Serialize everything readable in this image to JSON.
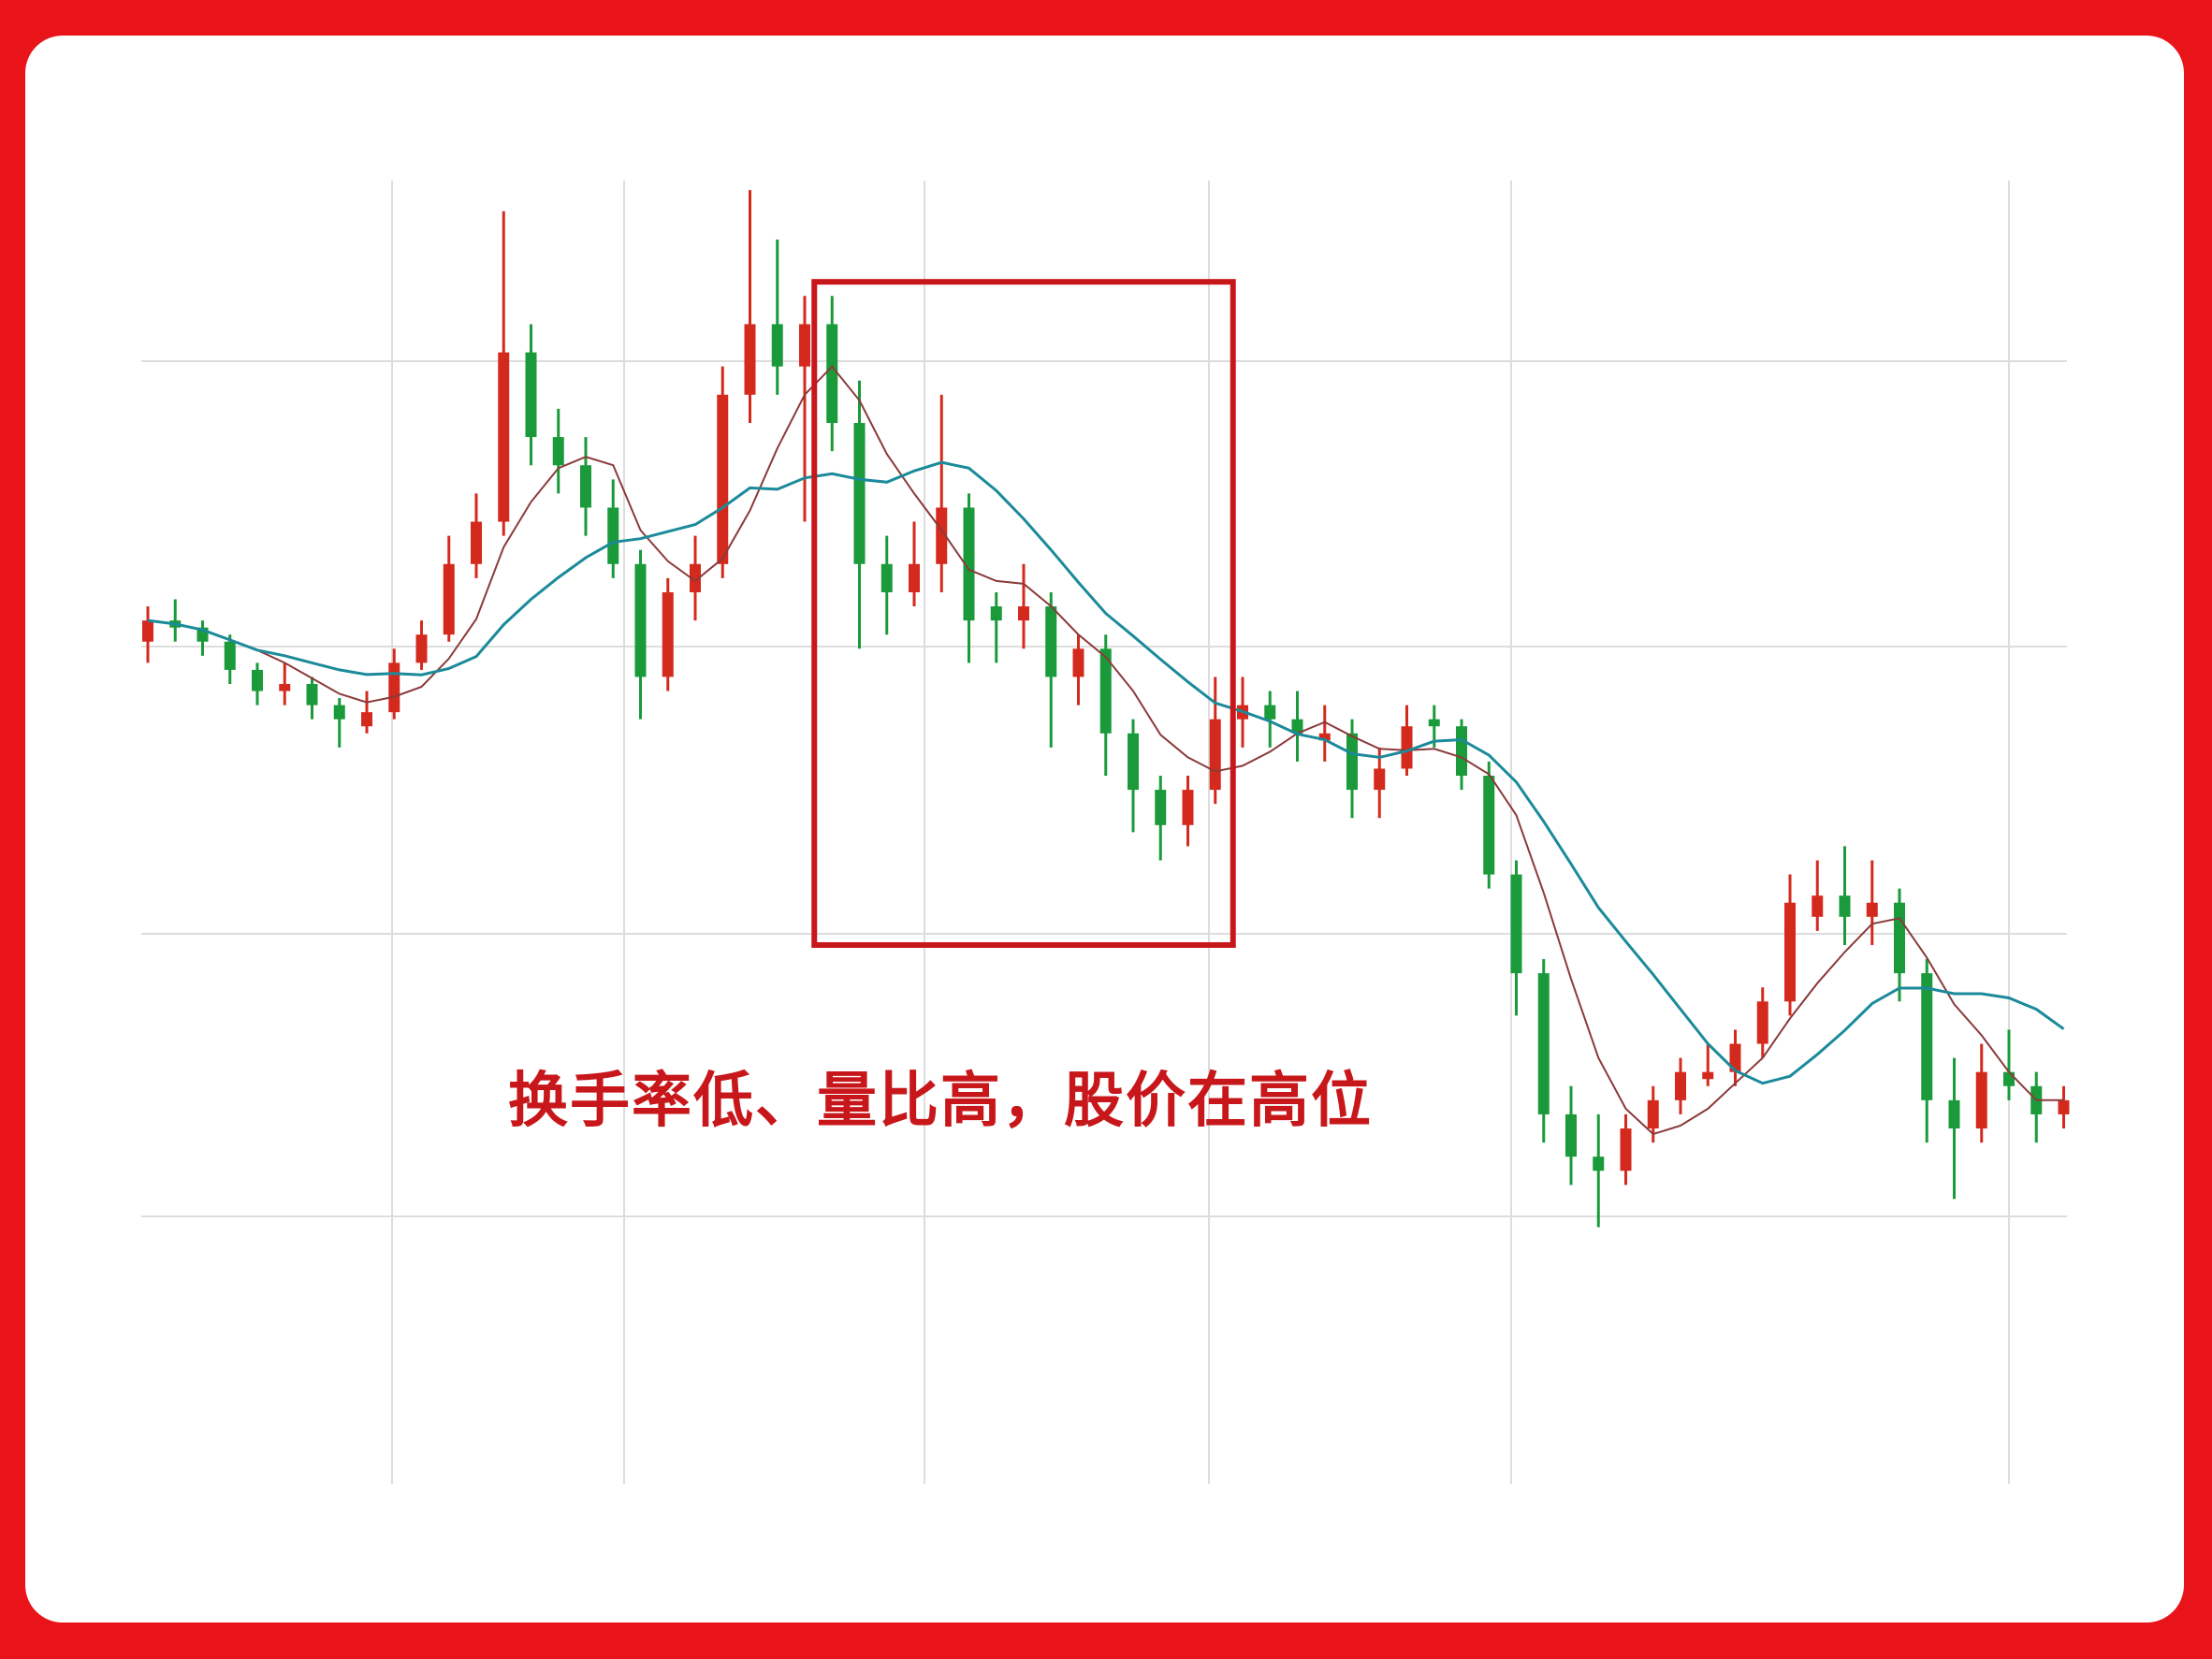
{
  "chart_data": {
    "type": "candlestick",
    "title": "",
    "xlabel": "",
    "ylabel": "",
    "grid": true,
    "ylim": [
      0,
      95
    ],
    "candles": [
      [
        59.5,
        62,
        58,
        61
      ],
      [
        61,
        62.5,
        59.5,
        60.5
      ],
      [
        60.5,
        61,
        58.5,
        59.5
      ],
      [
        59.5,
        60,
        56.5,
        57.5
      ],
      [
        57.5,
        58,
        55,
        56
      ],
      [
        56,
        58,
        55,
        56.5
      ],
      [
        56.5,
        57,
        54,
        55
      ],
      [
        55,
        55.5,
        52,
        54
      ],
      [
        53.5,
        56,
        53,
        54.5
      ],
      [
        54.5,
        59,
        54,
        58
      ],
      [
        58,
        61,
        57.5,
        60
      ],
      [
        60,
        67,
        59.5,
        65
      ],
      [
        65,
        70,
        64,
        68
      ],
      [
        68,
        90,
        67,
        80
      ],
      [
        80,
        82,
        72,
        74
      ],
      [
        74,
        76,
        70,
        72
      ],
      [
        72,
        74,
        67,
        69
      ],
      [
        69,
        71,
        64,
        65
      ],
      [
        65,
        66,
        54,
        57
      ],
      [
        57,
        64,
        56,
        63
      ],
      [
        63,
        67,
        61,
        65
      ],
      [
        65,
        79,
        64,
        77
      ],
      [
        77,
        91.5,
        75,
        82
      ],
      [
        82,
        88,
        77,
        79
      ],
      [
        79,
        84,
        68,
        82
      ],
      [
        82,
        84,
        73,
        75
      ],
      [
        75,
        78,
        59,
        65
      ],
      [
        65,
        67,
        60,
        63
      ],
      [
        63,
        68,
        62,
        65
      ],
      [
        65,
        77,
        63,
        69
      ],
      [
        69,
        70,
        58,
        61
      ],
      [
        62,
        63,
        58,
        61
      ],
      [
        61,
        65,
        59,
        62
      ],
      [
        62,
        63,
        52,
        57
      ],
      [
        57,
        60,
        55,
        59
      ],
      [
        59,
        60,
        50,
        53
      ],
      [
        53,
        54,
        46,
        49
      ],
      [
        49,
        50,
        44,
        46.5
      ],
      [
        46.5,
        50,
        45,
        49
      ],
      [
        49,
        57,
        48,
        54
      ],
      [
        54,
        57,
        52,
        55
      ],
      [
        55,
        56,
        52,
        54
      ],
      [
        54,
        56,
        51,
        53
      ],
      [
        52.5,
        55,
        51,
        53
      ],
      [
        53,
        54,
        47,
        49
      ],
      [
        49,
        52,
        47,
        50.5
      ],
      [
        50.5,
        55,
        50,
        53.5
      ],
      [
        54,
        55,
        52,
        53.5
      ],
      [
        53.5,
        54,
        49,
        50
      ],
      [
        50,
        51,
        42,
        43
      ],
      [
        43,
        44,
        33,
        36
      ],
      [
        36,
        37,
        24,
        26
      ],
      [
        26,
        28,
        21,
        23
      ],
      [
        23,
        26,
        18,
        22
      ],
      [
        22,
        26,
        21,
        25
      ],
      [
        25,
        28,
        24,
        27
      ],
      [
        27,
        30,
        26,
        29
      ],
      [
        28.5,
        31,
        28,
        29
      ],
      [
        29,
        32,
        28,
        31
      ],
      [
        31,
        35,
        30,
        34
      ],
      [
        34,
        43,
        33,
        41
      ],
      [
        40,
        44,
        39,
        41.5
      ],
      [
        41.5,
        45,
        38,
        40
      ],
      [
        40,
        44,
        38,
        41
      ],
      [
        41,
        42,
        34,
        36
      ],
      [
        36,
        37,
        24,
        27
      ],
      [
        27,
        30,
        20,
        25
      ],
      [
        25,
        31,
        24,
        29
      ],
      [
        29,
        32,
        27,
        28
      ],
      [
        28,
        29,
        24,
        26
      ],
      [
        26,
        28,
        25,
        27
      ]
    ],
    "candle_format": [
      "open",
      "high",
      "low",
      "close"
    ],
    "moving_averages": [
      {
        "period": 5,
        "color": "#8b3a3a"
      },
      {
        "period": 10,
        "color": "#1b8a9a"
      }
    ],
    "highlight_box": {
      "from_index": 25,
      "to_index": 39,
      "value_top": 85,
      "value_bottom": 38,
      "color": "#c8171b"
    },
    "colors": {
      "up": "#d42a1e",
      "down": "#1a9a3a",
      "frame": "#e8141a",
      "grid": "#dddddd"
    },
    "annotation": "换手率低、量比高，股价在高位"
  }
}
